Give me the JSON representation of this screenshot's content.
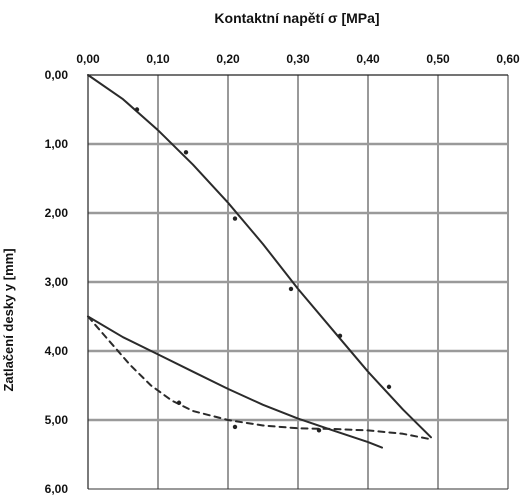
{
  "chart_data": {
    "type": "line",
    "title": "Kontaktní napětí σ [MPa]",
    "xlabel": "Kontaktní napětí σ [MPa]",
    "ylabel": "Zatlačení desky y [mm]",
    "xlim": [
      0,
      0.6
    ],
    "ylim": [
      0,
      6
    ],
    "y_inverted": true,
    "x_axis_position": "top",
    "grid": true,
    "xticks": [
      "0,00",
      "0,10",
      "0,20",
      "0,30",
      "0,40",
      "0,50",
      "0,60"
    ],
    "yticks": [
      "0,00",
      "1,00",
      "2,00",
      "3,00",
      "4,00",
      "5,00",
      "6,00"
    ],
    "series": [
      {
        "style": "solid",
        "color": "#2b2b2b",
        "points": [
          [
            0.0,
            0.0
          ],
          [
            0.05,
            0.35
          ],
          [
            0.1,
            0.8
          ],
          [
            0.15,
            1.3
          ],
          [
            0.2,
            1.85
          ],
          [
            0.25,
            2.45
          ],
          [
            0.3,
            3.1
          ],
          [
            0.35,
            3.7
          ],
          [
            0.4,
            4.3
          ],
          [
            0.45,
            4.85
          ],
          [
            0.49,
            5.25
          ]
        ]
      },
      {
        "style": "solid",
        "color": "#2b2b2b",
        "points": [
          [
            0.0,
            3.5
          ],
          [
            0.05,
            3.8
          ],
          [
            0.1,
            4.05
          ],
          [
            0.15,
            4.3
          ],
          [
            0.2,
            4.55
          ],
          [
            0.25,
            4.78
          ],
          [
            0.3,
            4.98
          ],
          [
            0.35,
            5.15
          ],
          [
            0.4,
            5.32
          ],
          [
            0.42,
            5.4
          ]
        ]
      },
      {
        "style": "dashed",
        "color": "#2b2b2b",
        "points": [
          [
            0.0,
            3.5
          ],
          [
            0.03,
            3.85
          ],
          [
            0.06,
            4.2
          ],
          [
            0.09,
            4.5
          ],
          [
            0.12,
            4.72
          ],
          [
            0.15,
            4.87
          ],
          [
            0.2,
            5.0
          ],
          [
            0.25,
            5.08
          ],
          [
            0.3,
            5.12
          ],
          [
            0.35,
            5.13
          ],
          [
            0.4,
            5.15
          ],
          [
            0.45,
            5.2
          ],
          [
            0.49,
            5.28
          ]
        ]
      }
    ],
    "markers": [
      [
        0.07,
        0.5
      ],
      [
        0.14,
        1.12
      ],
      [
        0.21,
        2.08
      ],
      [
        0.29,
        3.1
      ],
      [
        0.36,
        3.78
      ],
      [
        0.43,
        4.52
      ],
      [
        0.13,
        4.75
      ],
      [
        0.21,
        5.1
      ],
      [
        0.33,
        5.15
      ]
    ]
  }
}
